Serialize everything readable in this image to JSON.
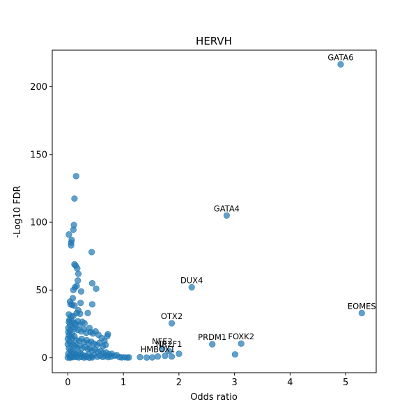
{
  "chart_data": {
    "type": "scatter",
    "title": "HERVH",
    "xlabel": "Odds ratio",
    "ylabel": "-Log10 FDR",
    "xlim": [
      -0.28,
      5.55
    ],
    "ylim": [
      -11,
      227
    ],
    "xticks": [
      0,
      1,
      2,
      3,
      4,
      5
    ],
    "xtick_labels": [
      "0",
      "1",
      "2",
      "3",
      "4",
      "5"
    ],
    "yticks": [
      0,
      50,
      100,
      150,
      200
    ],
    "ytick_labels": [
      "0",
      "50",
      "100",
      "150",
      "200"
    ],
    "grid": false,
    "point_color": "#1f77b4",
    "point_alpha": 0.7,
    "points": [
      [
        4.91,
        216.5
      ],
      [
        2.86,
        105.0
      ],
      [
        2.23,
        52.0
      ],
      [
        1.87,
        25.5
      ],
      [
        5.29,
        33.0
      ],
      [
        3.12,
        10.5
      ],
      [
        2.6,
        10.0
      ],
      [
        3.01,
        2.5
      ],
      [
        2.0,
        3.0
      ],
      [
        1.82,
        5.0
      ],
      [
        1.7,
        7.0
      ],
      [
        1.62,
        1.0
      ],
      [
        1.52,
        0.3
      ],
      [
        1.42,
        0.2
      ],
      [
        1.3,
        0.5
      ],
      [
        1.87,
        1.0
      ],
      [
        1.75,
        1.5
      ],
      [
        0.15,
        134.0
      ],
      [
        0.12,
        117.5
      ],
      [
        0.11,
        98.0
      ],
      [
        0.1,
        94.5
      ],
      [
        0.02,
        91.0
      ],
      [
        0.07,
        87.0
      ],
      [
        0.06,
        85.0
      ],
      [
        0.06,
        83.0
      ],
      [
        0.43,
        78.0
      ],
      [
        0.12,
        69.0
      ],
      [
        0.14,
        68.0
      ],
      [
        0.17,
        66.0
      ],
      [
        0.19,
        62.0
      ],
      [
        0.18,
        57.0
      ],
      [
        0.16,
        53.0
      ],
      [
        0.13,
        52.0
      ],
      [
        0.1,
        50.0
      ],
      [
        0.44,
        55.0
      ],
      [
        0.51,
        51.0
      ],
      [
        0.24,
        49.0
      ],
      [
        0.23,
        40.5
      ],
      [
        0.44,
        39.5
      ],
      [
        0.04,
        41.5
      ],
      [
        0.05,
        39.5
      ],
      [
        0.08,
        39.0
      ],
      [
        0.09,
        44.0
      ],
      [
        0.12,
        38.5
      ],
      [
        0.19,
        35.0
      ],
      [
        0.36,
        33.0
      ],
      [
        0.02,
        32.0
      ],
      [
        0.06,
        30.5
      ],
      [
        0.1,
        31.0
      ],
      [
        0.16,
        33.0
      ],
      [
        0.22,
        32.5
      ],
      [
        0.03,
        28.0
      ],
      [
        0.07,
        27.0
      ],
      [
        0.11,
        26.0
      ],
      [
        0.14,
        25.0
      ],
      [
        0.18,
        27.0
      ],
      [
        0.21,
        24.0
      ],
      [
        0.26,
        26.5
      ],
      [
        0.3,
        25.5
      ],
      [
        0.04,
        24.0
      ],
      [
        0.09,
        22.5
      ],
      [
        0.13,
        21.5
      ],
      [
        0.18,
        20.5
      ],
      [
        0.24,
        19.5
      ],
      [
        0.29,
        21.0
      ],
      [
        0.33,
        18.5
      ],
      [
        0.39,
        22.0
      ],
      [
        0.41,
        19.0
      ],
      [
        0.45,
        18.0
      ],
      [
        0.5,
        19.5
      ],
      [
        0.55,
        17.0
      ],
      [
        0.61,
        14.5
      ],
      [
        0.66,
        12.5
      ],
      [
        0.71,
        16.0
      ],
      [
        0.72,
        17.5
      ],
      [
        0.01,
        19.0
      ],
      [
        0.02,
        16.5
      ],
      [
        0.05,
        15.5
      ],
      [
        0.08,
        14.5
      ],
      [
        0.12,
        16.0
      ],
      [
        0.15,
        13.0
      ],
      [
        0.2,
        12.5
      ],
      [
        0.25,
        14.0
      ],
      [
        0.29,
        11.5
      ],
      [
        0.34,
        13.0
      ],
      [
        0.38,
        11.0
      ],
      [
        0.42,
        12.0
      ],
      [
        0.47,
        10.5
      ],
      [
        0.52,
        9.5
      ],
      [
        0.57,
        11.0
      ],
      [
        0.63,
        8.5
      ],
      [
        0.68,
        9.5
      ],
      [
        0.03,
        12.0
      ],
      [
        0.06,
        10.5
      ],
      [
        0.1,
        9.5
      ],
      [
        0.13,
        8.5
      ],
      [
        0.17,
        7.5
      ],
      [
        0.21,
        9.0
      ],
      [
        0.26,
        7.0
      ],
      [
        0.31,
        8.0
      ],
      [
        0.36,
        6.5
      ],
      [
        0.4,
        7.0
      ],
      [
        0.44,
        5.5
      ],
      [
        0.49,
        6.0
      ],
      [
        0.54,
        4.5
      ],
      [
        0.59,
        5.0
      ],
      [
        0.64,
        3.5
      ],
      [
        0.69,
        4.0
      ],
      [
        0.74,
        2.5
      ],
      [
        0.79,
        3.0
      ],
      [
        0.84,
        1.5
      ],
      [
        0.88,
        2.0
      ],
      [
        0.02,
        7.0
      ],
      [
        0.05,
        5.5
      ],
      [
        0.08,
        4.5
      ],
      [
        0.11,
        3.5
      ],
      [
        0.15,
        2.5
      ],
      [
        0.19,
        4.0
      ],
      [
        0.23,
        3.0
      ],
      [
        0.27,
        2.0
      ],
      [
        0.32,
        1.5
      ],
      [
        0.37,
        2.5
      ],
      [
        0.42,
        1.0
      ],
      [
        0.47,
        2.0
      ],
      [
        0.53,
        0.8
      ],
      [
        0.58,
        1.5
      ],
      [
        0.63,
        0.6
      ],
      [
        0.68,
        1.2
      ],
      [
        0.73,
        0.5
      ],
      [
        0.78,
        0.9
      ],
      [
        0.93,
        0.5
      ],
      [
        0.97,
        0.3
      ],
      [
        1.02,
        0.4
      ],
      [
        1.07,
        0.2
      ],
      [
        1.1,
        0.3
      ],
      [
        0.01,
        3.0
      ],
      [
        0.03,
        1.5
      ],
      [
        0.06,
        0.8
      ],
      [
        0.09,
        0.4
      ],
      [
        0.12,
        1.0
      ],
      [
        0.16,
        0.5
      ],
      [
        0.2,
        0.3
      ],
      [
        0.0,
        0.2
      ],
      [
        0.04,
        0.1
      ],
      [
        0.25,
        0.6
      ],
      [
        0.29,
        0.2
      ],
      [
        0.34,
        0.4
      ],
      [
        0.39,
        0.1
      ],
      [
        0.44,
        0.3
      ],
      [
        0.0,
        10.0
      ],
      [
        0.01,
        22.0
      ],
      [
        0.02,
        26.5
      ],
      [
        0.0,
        14.0
      ],
      [
        0.04,
        20.0
      ],
      [
        0.07,
        18.0
      ]
    ],
    "annotations": [
      {
        "label": "GATA6",
        "x": 4.91,
        "y": 216.5
      },
      {
        "label": "GATA4",
        "x": 2.86,
        "y": 105.0
      },
      {
        "label": "DUX4",
        "x": 2.23,
        "y": 52.0
      },
      {
        "label": "OTX2",
        "x": 1.87,
        "y": 25.5
      },
      {
        "label": "EOMES",
        "x": 5.29,
        "y": 33.0
      },
      {
        "label": "FOXK2",
        "x": 3.12,
        "y": 10.5
      },
      {
        "label": "PRDM1",
        "x": 2.6,
        "y": 10.0
      },
      {
        "label": "NFE2",
        "x": 1.7,
        "y": 7.0
      },
      {
        "label": "NR2F1",
        "x": 1.82,
        "y": 5.0
      },
      {
        "label": "HMBOX1",
        "x": 1.62,
        "y": 1.0
      }
    ]
  }
}
